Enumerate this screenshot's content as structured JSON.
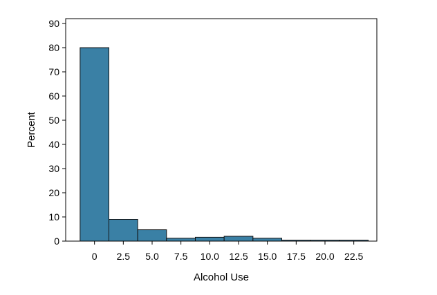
{
  "chart_data": {
    "type": "bar",
    "subtype": "histogram",
    "title": "",
    "xlabel": "Alcohol Use",
    "ylabel": "Percent",
    "bin_width": 2.5,
    "bins": [
      {
        "start": -1.25,
        "end": 1.25,
        "value": 80.0
      },
      {
        "start": 1.25,
        "end": 3.75,
        "value": 9.0
      },
      {
        "start": 3.75,
        "end": 6.25,
        "value": 4.7
      },
      {
        "start": 6.25,
        "end": 8.75,
        "value": 1.2
      },
      {
        "start": 8.75,
        "end": 11.25,
        "value": 1.6
      },
      {
        "start": 11.25,
        "end": 13.75,
        "value": 2.0
      },
      {
        "start": 13.75,
        "end": 16.25,
        "value": 1.2
      },
      {
        "start": 16.25,
        "end": 18.75,
        "value": 0.4
      },
      {
        "start": 18.75,
        "end": 21.25,
        "value": 0.4
      },
      {
        "start": 21.25,
        "end": 23.75,
        "value": 0.4
      }
    ],
    "xlim": [
      -2.5,
      24.5
    ],
    "ylim": [
      0,
      92
    ],
    "x_ticks": [
      0,
      2.5,
      5.0,
      7.5,
      10.0,
      12.5,
      15.0,
      17.5,
      20.0,
      22.5
    ],
    "x_tick_labels": [
      "0",
      "2.5",
      "5.0",
      "7.5",
      "10.0",
      "12.5",
      "15.0",
      "17.5",
      "20.0",
      "22.5"
    ],
    "y_ticks": [
      0,
      10,
      20,
      30,
      40,
      50,
      60,
      70,
      80,
      90
    ],
    "y_tick_labels": [
      "0",
      "10",
      "20",
      "30",
      "40",
      "50",
      "60",
      "70",
      "80",
      "90"
    ],
    "grid": false,
    "bar_color": "#3a80a5",
    "edge_color": "#111111"
  }
}
